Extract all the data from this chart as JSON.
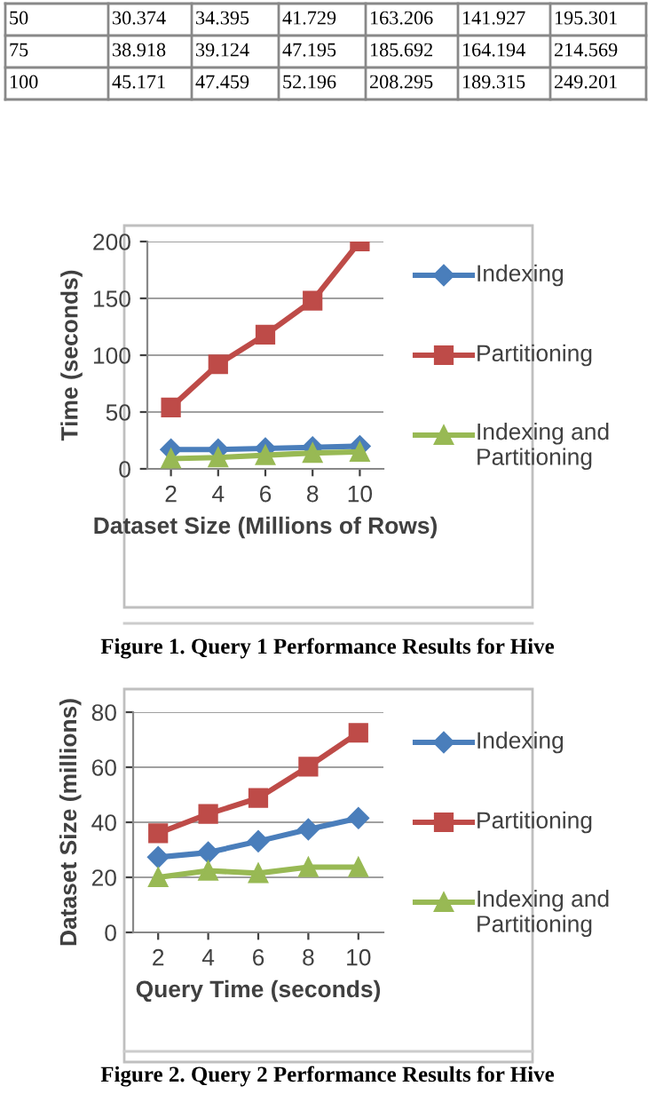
{
  "chart_data": [
    {
      "type": "other",
      "cell_labels": [
        [
          "50",
          "30.374",
          "34.395",
          "41.729",
          "163.206",
          "141.927",
          "195.301"
        ],
        [
          "75",
          "38.918",
          "39.124",
          "47.195",
          "185.692",
          "164.194",
          "214.569"
        ],
        [
          "100",
          "45.171",
          "47.459",
          "52.196",
          "208.295",
          "189.315",
          "249.201"
        ]
      ]
    },
    {
      "type": "line",
      "x": [
        2,
        4,
        6,
        8,
        10
      ],
      "xlim": [
        1,
        11
      ],
      "xticks": [
        2,
        4,
        6,
        8,
        10
      ],
      "ylim": [
        0,
        200
      ],
      "yticks": [
        0,
        50,
        100,
        150,
        200
      ],
      "xlabel": "Dataset Size (Millions of Rows)",
      "ylabel": "Time (seconds)",
      "grid": "y",
      "legend": "right",
      "annotations": [
        "Figure 1. Query 1 Performance Results for Hive"
      ],
      "series": [
        {
          "name": "Indexing",
          "color": "#4a7ebb",
          "marker": "diamond",
          "values": [
            17,
            17,
            18,
            19,
            20
          ]
        },
        {
          "name": "Partitioning",
          "color": "#be4b48",
          "marker": "square",
          "values": [
            54,
            92,
            118,
            148,
            200
          ]
        },
        {
          "name": "Indexing and Partitioning",
          "color": "#98b954",
          "marker": "triangle",
          "values": [
            9,
            10,
            12,
            14,
            15
          ]
        }
      ]
    },
    {
      "type": "line",
      "x": [
        2,
        4,
        6,
        8,
        10
      ],
      "xlim": [
        1,
        11
      ],
      "xticks": [
        2,
        4,
        6,
        8,
        10
      ],
      "ylim": [
        0,
        80
      ],
      "yticks": [
        0,
        20,
        40,
        60,
        80
      ],
      "xlabel": "Query Time (seconds)",
      "ylabel": "Dataset Size (millions)",
      "grid": "y",
      "legend": "right",
      "annotations": [
        "Figure 2. Query 2 Performance Results for Hive"
      ],
      "series": [
        {
          "name": "Indexing",
          "color": "#4a7ebb",
          "marker": "diamond",
          "values": [
            27.3,
            29,
            33.1,
            37.4,
            41.5
          ]
        },
        {
          "name": "Partitioning",
          "color": "#be4b48",
          "marker": "square",
          "values": [
            36,
            43,
            48.8,
            60.2,
            72.5
          ]
        },
        {
          "name": "Indexing and Partitioning",
          "color": "#98b954",
          "marker": "triangle",
          "values": [
            20,
            22.4,
            21.5,
            23.7,
            23.7
          ]
        }
      ]
    }
  ]
}
